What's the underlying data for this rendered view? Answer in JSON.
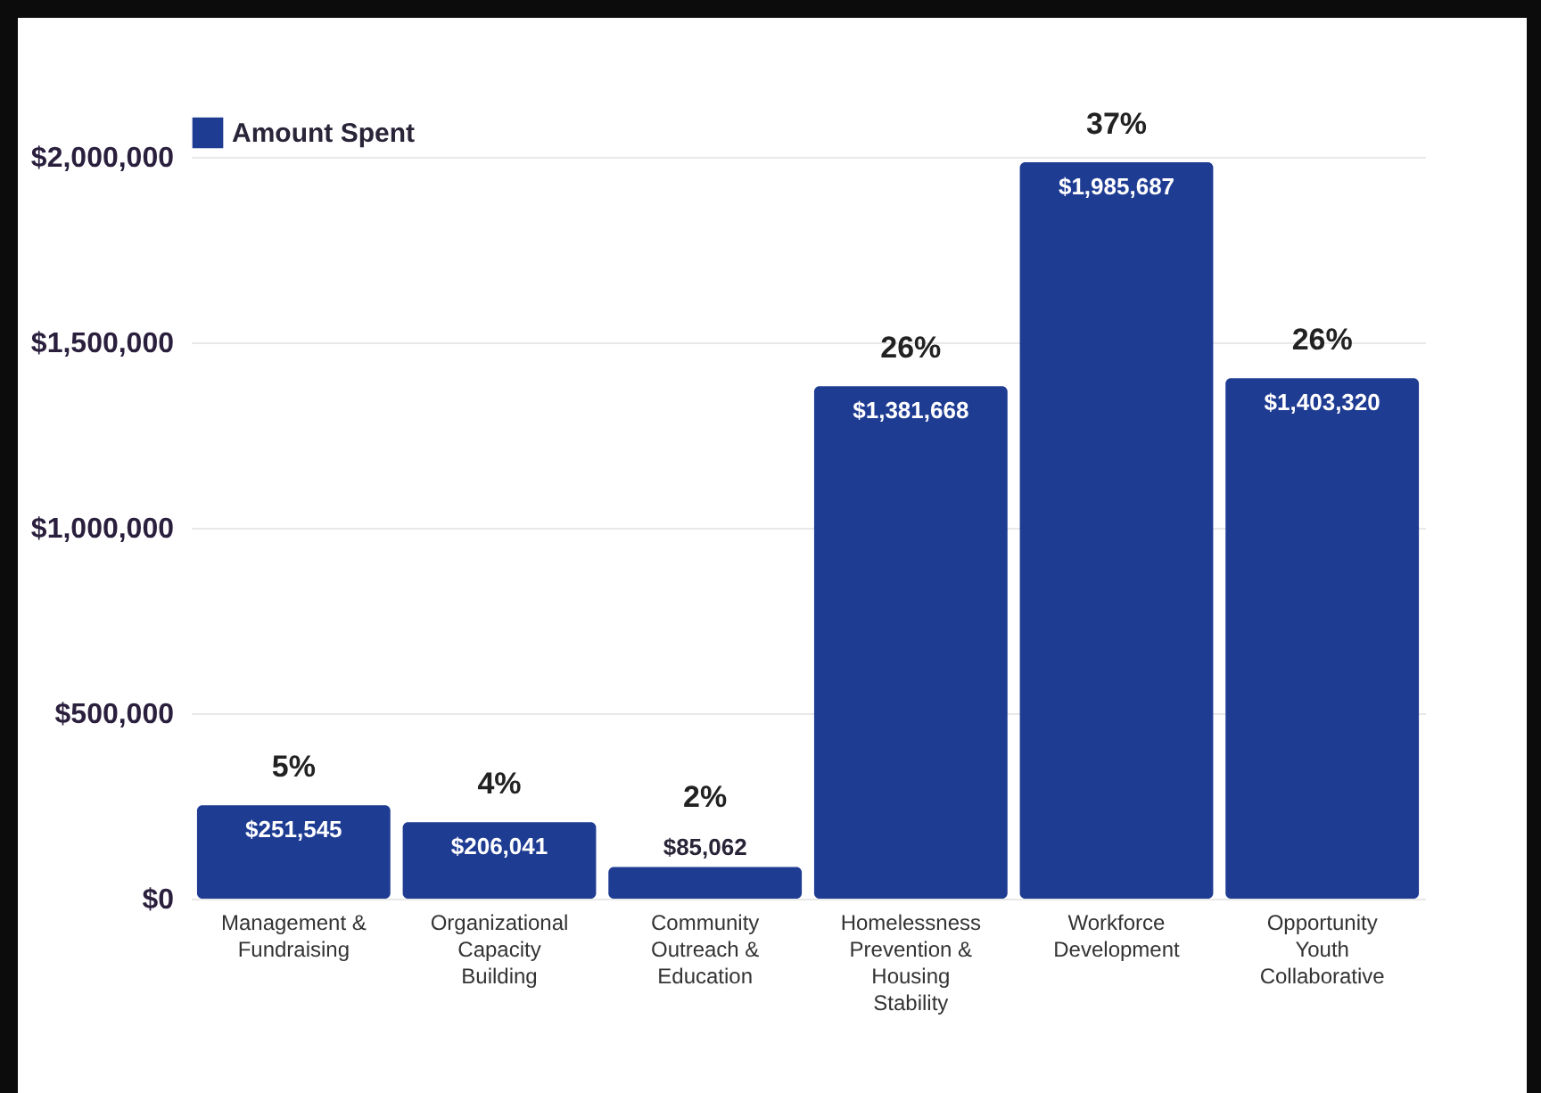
{
  "chart_data": {
    "type": "bar",
    "categories": [
      "Management & Fundraising",
      "Organizational Capacity Building",
      "Community Outreach & Education",
      "Homelessness Prevention & Housing Stability",
      "Workforce Development",
      "Opportunity Youth Collaborative"
    ],
    "series": [
      {
        "name": "Amount Spent",
        "color": "#1f3c93",
        "values": [
          251545,
          206041,
          85062,
          1381668,
          1985687,
          1403320
        ],
        "value_labels": [
          "$251,545",
          "$206,041",
          "$85,062",
          "$1,381,668",
          "$1,985,687",
          "$1,403,320"
        ]
      }
    ],
    "annotations": [
      {
        "text": "5%",
        "x": "Management & Fundraising",
        "y": 251545
      },
      {
        "text": "4%",
        "x": "Organizational Capacity Building",
        "y": 206041
      },
      {
        "text": "2%",
        "x": "Community Outreach & Education",
        "y": 85062
      },
      {
        "text": "26%",
        "x": "Homelessness Prevention & Housing Stability",
        "y": 1381668
      },
      {
        "text": "37%",
        "x": "Workforce Development",
        "y": 1985687
      },
      {
        "text": "26%",
        "x": "Opportunity Youth Collaborative",
        "y": 1403320
      }
    ],
    "ylim": [
      0,
      2000000
    ],
    "yticks": [
      {
        "value": 0,
        "label": "$0"
      },
      {
        "value": 500000,
        "label": "$500,000"
      },
      {
        "value": 1000000,
        "label": "$1,000,000"
      },
      {
        "value": 1500000,
        "label": "$1,500,000"
      },
      {
        "value": 2000000,
        "label": "$2,000,000"
      }
    ],
    "grid": "y",
    "legend": "top"
  }
}
